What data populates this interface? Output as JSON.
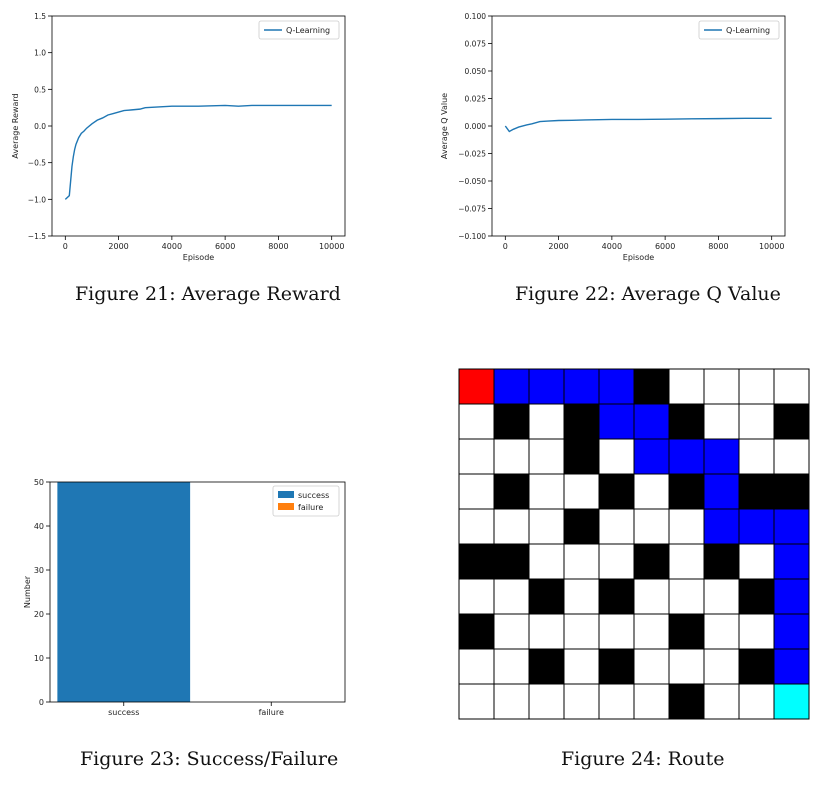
{
  "captions": {
    "fig21": "Figure 21: Average Reward",
    "fig22": "Figure 22: Average Q Value",
    "fig23": "Figure 23: Success/Failure",
    "fig24": "Figure 24: Route"
  },
  "chart_data": [
    {
      "id": "fig21",
      "type": "line",
      "xlabel": "Episode",
      "ylabel": "Average Reward",
      "xlim": [
        -500,
        10500
      ],
      "ylim": [
        -1.5,
        1.5
      ],
      "xticks": [
        0,
        2000,
        4000,
        6000,
        8000,
        10000
      ],
      "yticks": [
        -1.5,
        -1.0,
        -0.5,
        0.0,
        0.5,
        1.0,
        1.5
      ],
      "ytick_labels": [
        "−1.5",
        "−1.0",
        "−0.5",
        "0.0",
        "0.5",
        "1.0",
        "1.5"
      ],
      "legend": "top-right",
      "line_color": "#1f77b4",
      "series": [
        {
          "name": "Q-Learning",
          "x": [
            0,
            150,
            200,
            250,
            300,
            350,
            400,
            500,
            600,
            700,
            800,
            1000,
            1200,
            1400,
            1600,
            1800,
            2000,
            2200,
            2500,
            2800,
            3000,
            3500,
            4000,
            5000,
            6000,
            6500,
            7000,
            8000,
            9000,
            10000
          ],
          "y": [
            -1.0,
            -0.95,
            -0.75,
            -0.55,
            -0.42,
            -0.32,
            -0.25,
            -0.16,
            -0.1,
            -0.07,
            -0.03,
            0.03,
            0.08,
            0.11,
            0.15,
            0.17,
            0.19,
            0.21,
            0.22,
            0.23,
            0.25,
            0.26,
            0.27,
            0.27,
            0.28,
            0.27,
            0.28,
            0.28,
            0.28,
            0.28
          ]
        }
      ]
    },
    {
      "id": "fig22",
      "type": "line",
      "xlabel": "Episode",
      "ylabel": "Average Q Value",
      "xlim": [
        -500,
        10500
      ],
      "ylim": [
        -0.1,
        0.1
      ],
      "xticks": [
        0,
        2000,
        4000,
        6000,
        8000,
        10000
      ],
      "yticks": [
        -0.1,
        -0.075,
        -0.05,
        -0.025,
        0.0,
        0.025,
        0.05,
        0.075,
        0.1
      ],
      "ytick_labels": [
        "−0.100",
        "−0.075",
        "−0.050",
        "−0.025",
        "0.000",
        "0.025",
        "0.050",
        "0.075",
        "0.100"
      ],
      "legend": "top-right",
      "line_color": "#1f77b4",
      "series": [
        {
          "name": "Q-Learning",
          "x": [
            0,
            150,
            300,
            500,
            800,
            1000,
            1300,
            1600,
            2000,
            2500,
            3000,
            4000,
            5000,
            6000,
            7000,
            8000,
            9000,
            10000
          ],
          "y": [
            0.0,
            -0.005,
            -0.003,
            -0.001,
            0.001,
            0.002,
            0.004,
            0.0045,
            0.005,
            0.0052,
            0.0055,
            0.006,
            0.006,
            0.0062,
            0.0065,
            0.0067,
            0.007,
            0.007
          ]
        }
      ]
    },
    {
      "id": "fig23",
      "type": "bar",
      "categories": [
        "success",
        "failure"
      ],
      "ylabel": "Number",
      "ylim": [
        0,
        50
      ],
      "yticks": [
        0,
        10,
        20,
        30,
        40,
        50
      ],
      "legend": "top-right",
      "series": [
        {
          "name": "success",
          "values": [
            50,
            0
          ],
          "color": "#1f77b4"
        },
        {
          "name": "failure",
          "values": [
            0,
            0
          ],
          "color": "#ff7f0e"
        }
      ]
    }
  ],
  "route_grid": {
    "rows": 10,
    "cols": 10,
    "legend": {
      "W": "#ffffff",
      "B": "#000000",
      "P": "#0000ff",
      "S": "#ff0000",
      "G": "#00ffff"
    },
    "cells": [
      "SPPPPBWWWW",
      "WBWBPPBWWB",
      "WWWBWPPPWW",
      "WBWWBWBPBB",
      "WWWBWWWPPP",
      "BBWWWBWBWP",
      "WWBWBWWWBP",
      "BWWWWWBWWP",
      "WWBWBWWWBP",
      "WWWWWWBWWG"
    ]
  }
}
